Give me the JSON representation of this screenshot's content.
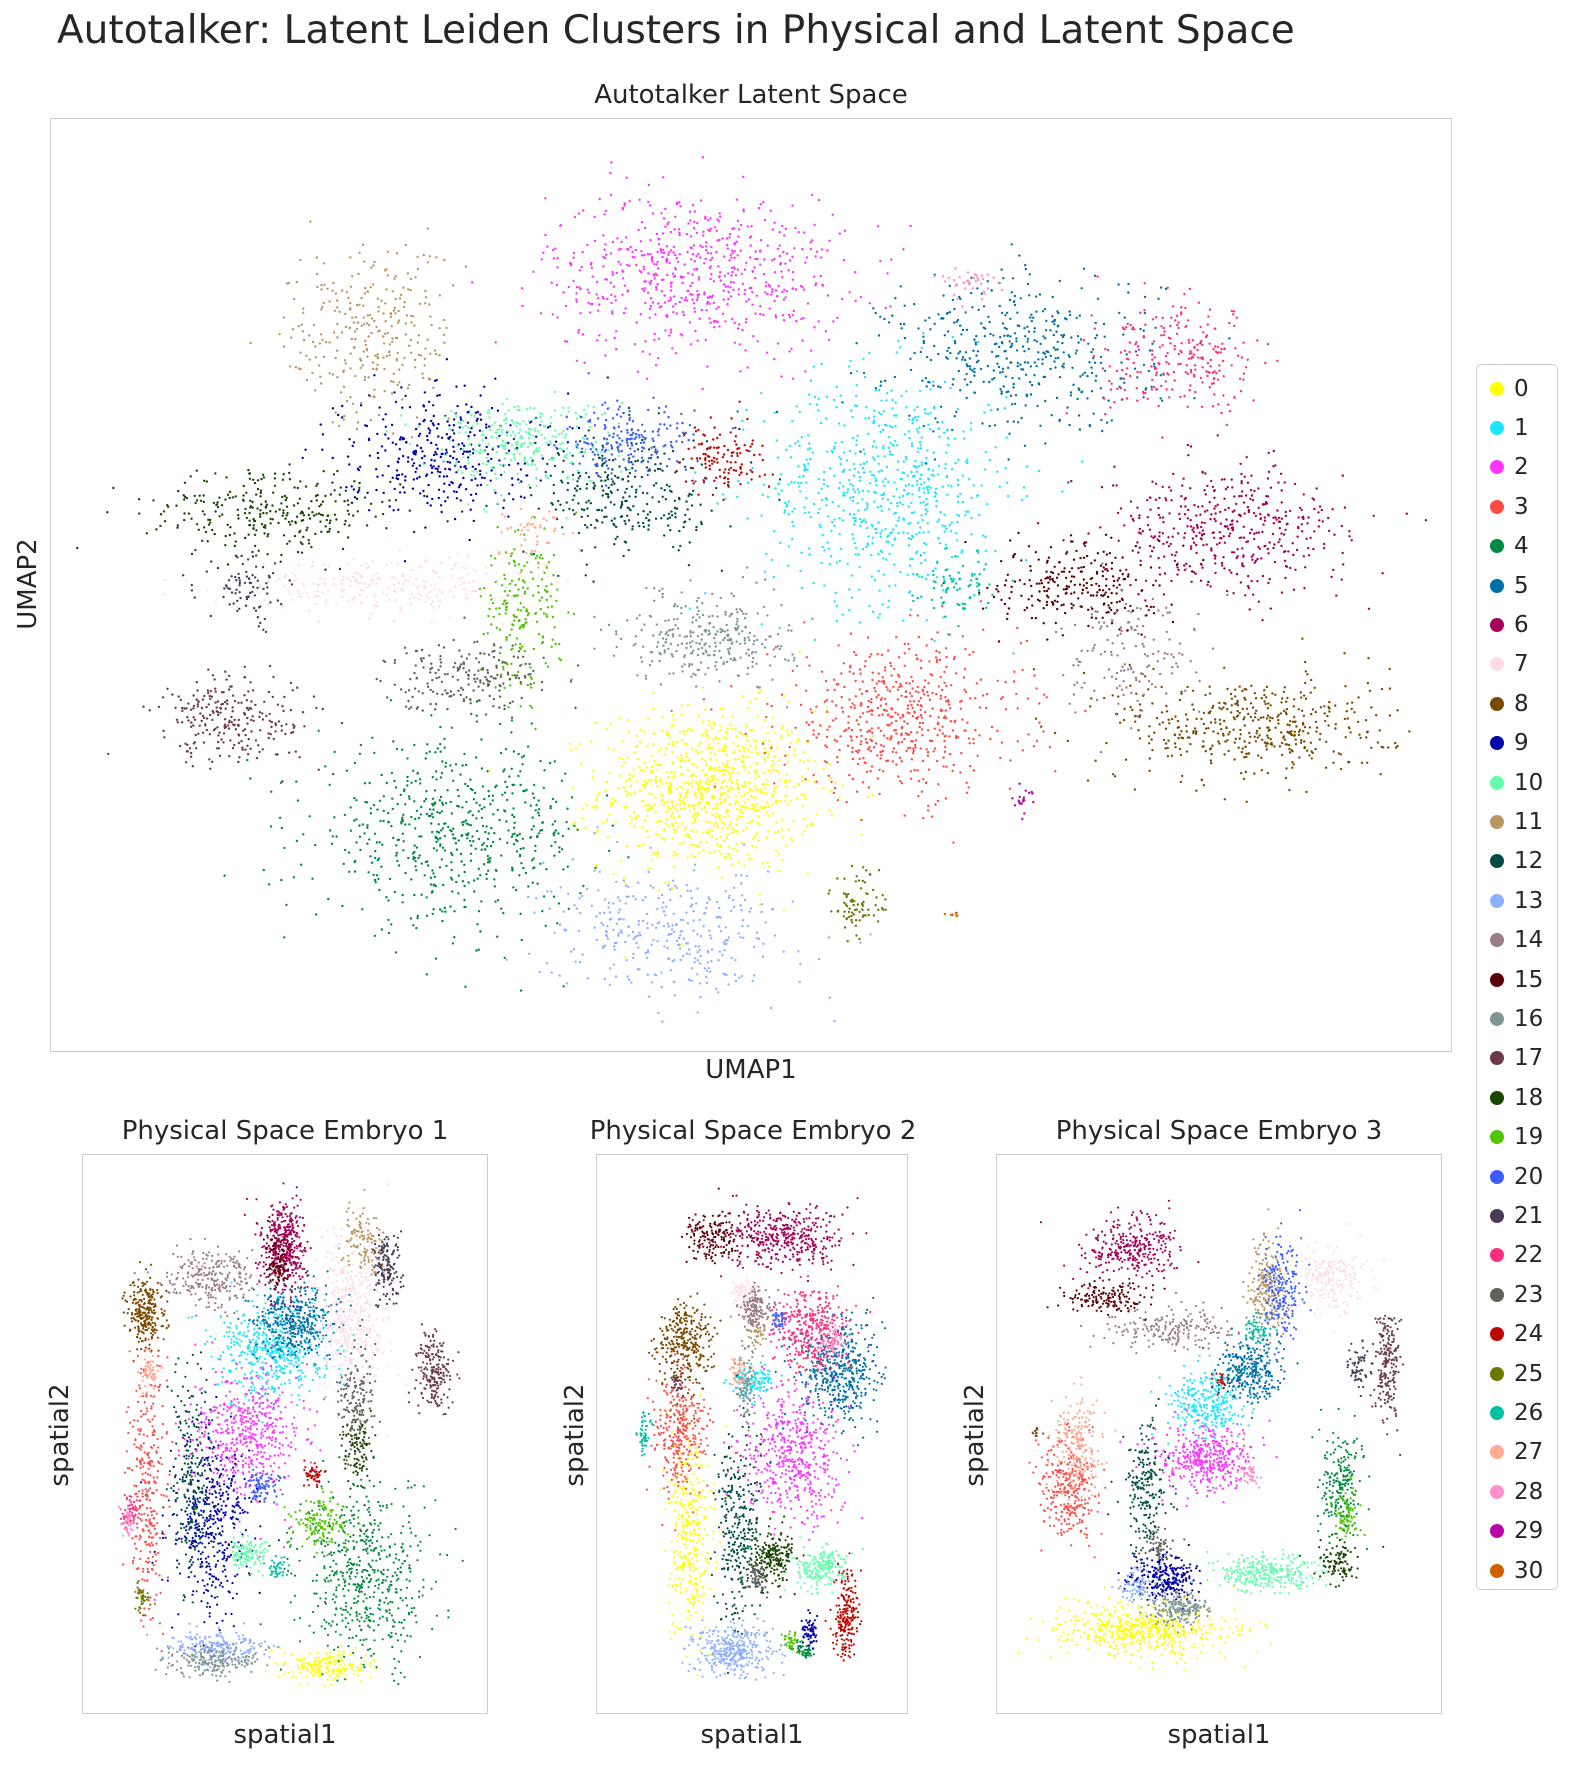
{
  "suptitle": "Autotalker: Latent Leiden Clusters in Physical and Latent Space",
  "legend": {
    "placement": "right",
    "entries": [
      {
        "label": "0",
        "color": "#ffff00"
      },
      {
        "label": "1",
        "color": "#1ce6ff"
      },
      {
        "label": "2",
        "color": "#ff34ff"
      },
      {
        "label": "3",
        "color": "#ff4a46"
      },
      {
        "label": "4",
        "color": "#008941"
      },
      {
        "label": "5",
        "color": "#006fa6"
      },
      {
        "label": "6",
        "color": "#a30059"
      },
      {
        "label": "7",
        "color": "#ffdbe5"
      },
      {
        "label": "8",
        "color": "#7a4900"
      },
      {
        "label": "9",
        "color": "#0000a6"
      },
      {
        "label": "10",
        "color": "#63ffac"
      },
      {
        "label": "11",
        "color": "#b79762"
      },
      {
        "label": "12",
        "color": "#004d43"
      },
      {
        "label": "13",
        "color": "#8fb0ff"
      },
      {
        "label": "14",
        "color": "#997d87"
      },
      {
        "label": "15",
        "color": "#5a0007"
      },
      {
        "label": "16",
        "color": "#809693"
      },
      {
        "label": "17",
        "color": "#6a3a4c"
      },
      {
        "label": "18",
        "color": "#1b4400"
      },
      {
        "label": "19",
        "color": "#4fc601"
      },
      {
        "label": "20",
        "color": "#3b5dff"
      },
      {
        "label": "21",
        "color": "#4a3b53"
      },
      {
        "label": "22",
        "color": "#ff2f80"
      },
      {
        "label": "23",
        "color": "#61615a"
      },
      {
        "label": "24",
        "color": "#ba0900"
      },
      {
        "label": "25",
        "color": "#6b7900"
      },
      {
        "label": "26",
        "color": "#00c2a0"
      },
      {
        "label": "27",
        "color": "#ffaa92"
      },
      {
        "label": "28",
        "color": "#ff90c9"
      },
      {
        "label": "29",
        "color": "#b903aa"
      },
      {
        "label": "30",
        "color": "#d16100"
      }
    ]
  },
  "chart_data": [
    {
      "type": "scatter",
      "title": "Autotalker Latent Space",
      "xlabel": "UMAP1",
      "ylabel": "UMAP2",
      "xticks": [],
      "yticks": [],
      "grid": false,
      "xlim": [
        0,
        100
      ],
      "ylim": [
        0,
        100
      ],
      "series": [
        {
          "name": "0",
          "cx": 47,
          "cy": 27,
          "rx": 8,
          "ry": 9,
          "n": 900
        },
        {
          "name": "1",
          "cx": 60,
          "cy": 61,
          "rx": 9,
          "ry": 13,
          "n": 700
        },
        {
          "name": "2",
          "cx": 46,
          "cy": 85,
          "rx": 11,
          "ry": 9,
          "n": 650
        },
        {
          "name": "3",
          "cx": 61,
          "cy": 35,
          "rx": 9,
          "ry": 9,
          "n": 550
        },
        {
          "name": "4",
          "cx": 28,
          "cy": 22,
          "rx": 10,
          "ry": 10,
          "n": 600
        },
        {
          "name": "5",
          "cx": 70,
          "cy": 76,
          "rx": 10,
          "ry": 9,
          "n": 450
        },
        {
          "name": "6",
          "cx": 85,
          "cy": 56,
          "rx": 9,
          "ry": 7,
          "n": 450
        },
        {
          "name": "7",
          "cx": 23,
          "cy": 50,
          "rx": 11,
          "ry": 3,
          "n": 250
        },
        {
          "name": "8",
          "cx": 87,
          "cy": 34,
          "rx": 10,
          "ry": 6,
          "n": 450
        },
        {
          "name": "9",
          "cx": 27,
          "cy": 65,
          "rx": 7,
          "ry": 7,
          "n": 350
        },
        {
          "name": "10",
          "cx": 33,
          "cy": 66,
          "rx": 7,
          "ry": 5,
          "n": 300
        },
        {
          "name": "11",
          "cx": 22,
          "cy": 78,
          "rx": 6,
          "ry": 10,
          "n": 300
        },
        {
          "name": "12",
          "cx": 41,
          "cy": 60,
          "rx": 7,
          "ry": 7,
          "n": 300
        },
        {
          "name": "13",
          "cx": 44,
          "cy": 11,
          "rx": 9,
          "ry": 7,
          "n": 350
        },
        {
          "name": "14",
          "cx": 78,
          "cy": 42,
          "rx": 5,
          "ry": 7,
          "n": 150
        },
        {
          "name": "15",
          "cx": 74,
          "cy": 50,
          "rx": 6,
          "ry": 5,
          "n": 250
        },
        {
          "name": "16",
          "cx": 47,
          "cy": 44,
          "rx": 6,
          "ry": 5,
          "n": 300
        },
        {
          "name": "17",
          "cx": 12,
          "cy": 35,
          "rx": 6,
          "ry": 5,
          "n": 250
        },
        {
          "name": "18",
          "cx": 15,
          "cy": 58,
          "rx": 9,
          "ry": 5,
          "n": 300
        },
        {
          "name": "19",
          "cx": 33,
          "cy": 47,
          "rx": 3,
          "ry": 9,
          "n": 200
        },
        {
          "name": "20",
          "cx": 41,
          "cy": 66,
          "rx": 5,
          "ry": 4,
          "n": 200
        },
        {
          "name": "21",
          "cx": 13,
          "cy": 49,
          "rx": 3,
          "ry": 4,
          "n": 80
        },
        {
          "name": "22",
          "cx": 82,
          "cy": 75,
          "rx": 6,
          "ry": 6,
          "n": 250
        },
        {
          "name": "23",
          "cx": 29,
          "cy": 40,
          "rx": 6,
          "ry": 4,
          "n": 200
        },
        {
          "name": "24",
          "cx": 48,
          "cy": 64,
          "rx": 3,
          "ry": 4,
          "n": 120
        },
        {
          "name": "25",
          "cx": 58,
          "cy": 14,
          "rx": 2,
          "ry": 4,
          "n": 80
        },
        {
          "name": "26",
          "cx": 65,
          "cy": 50,
          "rx": 3,
          "ry": 4,
          "n": 80
        },
        {
          "name": "27",
          "cx": 34,
          "cy": 55,
          "rx": 3,
          "ry": 3,
          "n": 50
        },
        {
          "name": "28",
          "cx": 66,
          "cy": 84,
          "rx": 2,
          "ry": 2,
          "n": 40
        },
        {
          "name": "29",
          "cx": 70,
          "cy": 26,
          "rx": 1,
          "ry": 1.5,
          "n": 20
        },
        {
          "name": "30",
          "cx": 65,
          "cy": 13,
          "rx": 0.5,
          "ry": 0.5,
          "n": 8
        }
      ]
    },
    {
      "type": "scatter",
      "title": "Physical Space Embryo 1",
      "xlabel": "spatial1",
      "ylabel": "spatial2",
      "xticks": [],
      "yticks": [],
      "grid": false,
      "xlim": [
        0,
        100
      ],
      "ylim": [
        0,
        100
      ],
      "series": [
        {
          "name": "0",
          "cx": 62,
          "cy": 5,
          "rx": 11,
          "ry": 3,
          "n": 200
        },
        {
          "name": "1",
          "cx": 47,
          "cy": 66,
          "rx": 15,
          "ry": 9,
          "n": 500
        },
        {
          "name": "2",
          "cx": 40,
          "cy": 50,
          "rx": 15,
          "ry": 12,
          "n": 500
        },
        {
          "name": "3",
          "cx": 12,
          "cy": 40,
          "rx": 5,
          "ry": 26,
          "n": 300
        },
        {
          "name": "4",
          "cx": 72,
          "cy": 22,
          "rx": 18,
          "ry": 17,
          "n": 550
        },
        {
          "name": "5",
          "cx": 53,
          "cy": 72,
          "rx": 11,
          "ry": 7,
          "n": 400
        },
        {
          "name": "6",
          "cx": 50,
          "cy": 86,
          "rx": 6,
          "ry": 9,
          "n": 400
        },
        {
          "name": "7",
          "cx": 68,
          "cy": 72,
          "rx": 10,
          "ry": 17,
          "n": 450
        },
        {
          "name": "8",
          "cx": 12,
          "cy": 73,
          "rx": 5,
          "ry": 7,
          "n": 250
        },
        {
          "name": "9",
          "cx": 30,
          "cy": 32,
          "rx": 11,
          "ry": 17,
          "n": 400
        },
        {
          "name": "10",
          "cx": 40,
          "cy": 27,
          "rx": 6,
          "ry": 3,
          "n": 120
        },
        {
          "name": "11",
          "cx": 72,
          "cy": 87,
          "rx": 6,
          "ry": 6,
          "n": 120
        },
        {
          "name": "12",
          "cx": 25,
          "cy": 40,
          "rx": 6,
          "ry": 22,
          "n": 250
        },
        {
          "name": "13",
          "cx": 32,
          "cy": 9,
          "rx": 14,
          "ry": 3,
          "n": 200
        },
        {
          "name": "14",
          "cx": 30,
          "cy": 80,
          "rx": 12,
          "ry": 5,
          "n": 250
        },
        {
          "name": "15",
          "cx": 48,
          "cy": 83,
          "rx": 4,
          "ry": 5,
          "n": 100
        },
        {
          "name": "16",
          "cx": 30,
          "cy": 6,
          "rx": 12,
          "ry": 3,
          "n": 200
        },
        {
          "name": "17",
          "cx": 91,
          "cy": 62,
          "rx": 5,
          "ry": 8,
          "n": 200
        },
        {
          "name": "18",
          "cx": 70,
          "cy": 47,
          "rx": 4,
          "ry": 6,
          "n": 100
        },
        {
          "name": "19",
          "cx": 60,
          "cy": 33,
          "rx": 8,
          "ry": 5,
          "n": 150
        },
        {
          "name": "20",
          "cx": 44,
          "cy": 40,
          "rx": 5,
          "ry": 3,
          "n": 80
        },
        {
          "name": "21",
          "cx": 78,
          "cy": 82,
          "rx": 4,
          "ry": 7,
          "n": 150
        },
        {
          "name": "22",
          "cx": 8,
          "cy": 35,
          "rx": 3,
          "ry": 3,
          "n": 50
        },
        {
          "name": "23",
          "cx": 70,
          "cy": 57,
          "rx": 5,
          "ry": 10,
          "n": 150
        },
        {
          "name": "24",
          "cx": 58,
          "cy": 42,
          "rx": 3,
          "ry": 2,
          "n": 50
        },
        {
          "name": "25",
          "cx": 11,
          "cy": 18,
          "rx": 2,
          "ry": 3,
          "n": 40
        },
        {
          "name": "26",
          "cx": 48,
          "cy": 24,
          "rx": 3,
          "ry": 2,
          "n": 40
        },
        {
          "name": "27",
          "cx": 13,
          "cy": 62,
          "rx": 3,
          "ry": 4,
          "n": 60
        },
        {
          "name": "28",
          "cx": 7,
          "cy": 33,
          "rx": 2,
          "ry": 3,
          "n": 40
        }
      ]
    },
    {
      "type": "scatter",
      "title": "Physical Space Embryo 2",
      "xlabel": "spatial1",
      "ylabel": "spatial2",
      "xticks": [],
      "yticks": [],
      "grid": false,
      "xlim": [
        0,
        100
      ],
      "ylim": [
        0,
        100
      ],
      "series": [
        {
          "name": "0",
          "cx": 27,
          "cy": 30,
          "rx": 8,
          "ry": 18,
          "n": 350
        },
        {
          "name": "1",
          "cx": 50,
          "cy": 60,
          "rx": 8,
          "ry": 3,
          "n": 120
        },
        {
          "name": "2",
          "cx": 65,
          "cy": 46,
          "rx": 18,
          "ry": 13,
          "n": 500
        },
        {
          "name": "3",
          "cx": 23,
          "cy": 50,
          "rx": 10,
          "ry": 12,
          "n": 300
        },
        {
          "name": "4",
          "cx": 70,
          "cy": 8,
          "rx": 4,
          "ry": 2,
          "n": 50
        },
        {
          "name": "5",
          "cx": 82,
          "cy": 62,
          "rx": 15,
          "ry": 10,
          "n": 450
        },
        {
          "name": "6",
          "cx": 62,
          "cy": 88,
          "rx": 22,
          "ry": 6,
          "n": 400
        },
        {
          "name": "7",
          "cx": 48,
          "cy": 77,
          "rx": 5,
          "ry": 3,
          "n": 80
        },
        {
          "name": "8",
          "cx": 25,
          "cy": 67,
          "rx": 10,
          "ry": 8,
          "n": 300
        },
        {
          "name": "9",
          "cx": 72,
          "cy": 12,
          "rx": 3,
          "ry": 3,
          "n": 60
        },
        {
          "name": "10",
          "cx": 75,
          "cy": 24,
          "rx": 10,
          "ry": 4,
          "n": 200
        },
        {
          "name": "11",
          "cx": 52,
          "cy": 70,
          "rx": 3,
          "ry": 3,
          "n": 40
        },
        {
          "name": "12",
          "cx": 45,
          "cy": 30,
          "rx": 8,
          "ry": 20,
          "n": 300
        },
        {
          "name": "13",
          "cx": 43,
          "cy": 8,
          "rx": 15,
          "ry": 5,
          "n": 350
        },
        {
          "name": "14",
          "cx": 52,
          "cy": 74,
          "rx": 6,
          "ry": 4,
          "n": 150
        },
        {
          "name": "15",
          "cx": 35,
          "cy": 88,
          "rx": 10,
          "ry": 5,
          "n": 150
        },
        {
          "name": "16",
          "cx": 48,
          "cy": 60,
          "rx": 4,
          "ry": 8,
          "n": 100
        },
        {
          "name": "17",
          "cx": 22,
          "cy": 60,
          "rx": 3,
          "ry": 2,
          "n": 30
        },
        {
          "name": "18",
          "cx": 58,
          "cy": 26,
          "rx": 8,
          "ry": 5,
          "n": 200
        },
        {
          "name": "19",
          "cx": 65,
          "cy": 10,
          "rx": 3,
          "ry": 2,
          "n": 40
        },
        {
          "name": "20",
          "cx": 60,
          "cy": 72,
          "rx": 3,
          "ry": 2,
          "n": 40
        },
        {
          "name": "22",
          "cx": 72,
          "cy": 70,
          "rx": 12,
          "ry": 8,
          "n": 350
        },
        {
          "name": "23",
          "cx": 52,
          "cy": 22,
          "rx": 4,
          "ry": 3,
          "n": 60
        },
        {
          "name": "24",
          "cx": 85,
          "cy": 15,
          "rx": 5,
          "ry": 8,
          "n": 200
        },
        {
          "name": "26",
          "cx": 10,
          "cy": 50,
          "rx": 3,
          "ry": 4,
          "n": 50
        },
        {
          "name": "27",
          "cx": 45,
          "cy": 62,
          "rx": 3,
          "ry": 3,
          "n": 40
        },
        {
          "name": "28",
          "cx": 80,
          "cy": 68,
          "rx": 4,
          "ry": 3,
          "n": 60
        }
      ]
    },
    {
      "type": "scatter",
      "title": "Physical Space Embryo 3",
      "xlabel": "spatial1",
      "ylabel": "spatial2",
      "xticks": [],
      "yticks": [],
      "grid": false,
      "xlim": [
        0,
        100
      ],
      "ylim": [
        0,
        100
      ],
      "series": [
        {
          "name": "0",
          "cx": 32,
          "cy": 12,
          "rx": 22,
          "ry": 5,
          "n": 550
        },
        {
          "name": "1",
          "cx": 47,
          "cy": 56,
          "rx": 9,
          "ry": 6,
          "n": 300
        },
        {
          "name": "2",
          "cx": 47,
          "cy": 45,
          "rx": 11,
          "ry": 6,
          "n": 400
        },
        {
          "name": "3",
          "cx": 13,
          "cy": 40,
          "rx": 7,
          "ry": 10,
          "n": 300
        },
        {
          "name": "4",
          "cx": 80,
          "cy": 40,
          "rx": 5,
          "ry": 10,
          "n": 200
        },
        {
          "name": "5",
          "cx": 58,
          "cy": 62,
          "rx": 8,
          "ry": 6,
          "n": 300
        },
        {
          "name": "6",
          "cx": 28,
          "cy": 86,
          "rx": 12,
          "ry": 6,
          "n": 300
        },
        {
          "name": "7",
          "cx": 78,
          "cy": 80,
          "rx": 8,
          "ry": 6,
          "n": 200
        },
        {
          "name": "8",
          "cx": 5,
          "cy": 50,
          "rx": 1,
          "ry": 1,
          "n": 10
        },
        {
          "name": "9",
          "cx": 37,
          "cy": 22,
          "rx": 8,
          "ry": 4,
          "n": 250
        },
        {
          "name": "10",
          "cx": 62,
          "cy": 23,
          "rx": 13,
          "ry": 4,
          "n": 300
        },
        {
          "name": "11",
          "cx": 62,
          "cy": 78,
          "rx": 4,
          "ry": 10,
          "n": 200
        },
        {
          "name": "12",
          "cx": 32,
          "cy": 40,
          "rx": 5,
          "ry": 12,
          "n": 200
        },
        {
          "name": "13",
          "cx": 30,
          "cy": 20,
          "rx": 5,
          "ry": 3,
          "n": 80
        },
        {
          "name": "14",
          "cx": 38,
          "cy": 70,
          "rx": 15,
          "ry": 4,
          "n": 200
        },
        {
          "name": "15",
          "cx": 22,
          "cy": 76,
          "rx": 10,
          "ry": 3,
          "n": 150
        },
        {
          "name": "16",
          "cx": 40,
          "cy": 16,
          "rx": 8,
          "ry": 3,
          "n": 200
        },
        {
          "name": "17",
          "cx": 92,
          "cy": 62,
          "rx": 3,
          "ry": 10,
          "n": 200
        },
        {
          "name": "18",
          "cx": 80,
          "cy": 25,
          "rx": 5,
          "ry": 4,
          "n": 100
        },
        {
          "name": "19",
          "cx": 82,
          "cy": 35,
          "rx": 3,
          "ry": 5,
          "n": 80
        },
        {
          "name": "20",
          "cx": 66,
          "cy": 78,
          "rx": 5,
          "ry": 10,
          "n": 200
        },
        {
          "name": "21",
          "cx": 85,
          "cy": 62,
          "rx": 3,
          "ry": 5,
          "n": 60
        },
        {
          "name": "23",
          "cx": 35,
          "cy": 28,
          "rx": 4,
          "ry": 3,
          "n": 60
        },
        {
          "name": "24",
          "cx": 50,
          "cy": 60,
          "rx": 2,
          "ry": 2,
          "n": 20
        },
        {
          "name": "26",
          "cx": 60,
          "cy": 70,
          "rx": 4,
          "ry": 3,
          "n": 60
        },
        {
          "name": "27",
          "cx": 15,
          "cy": 48,
          "rx": 6,
          "ry": 10,
          "n": 200
        },
        {
          "name": "28",
          "cx": 58,
          "cy": 42,
          "rx": 3,
          "ry": 2,
          "n": 40
        }
      ]
    }
  ]
}
